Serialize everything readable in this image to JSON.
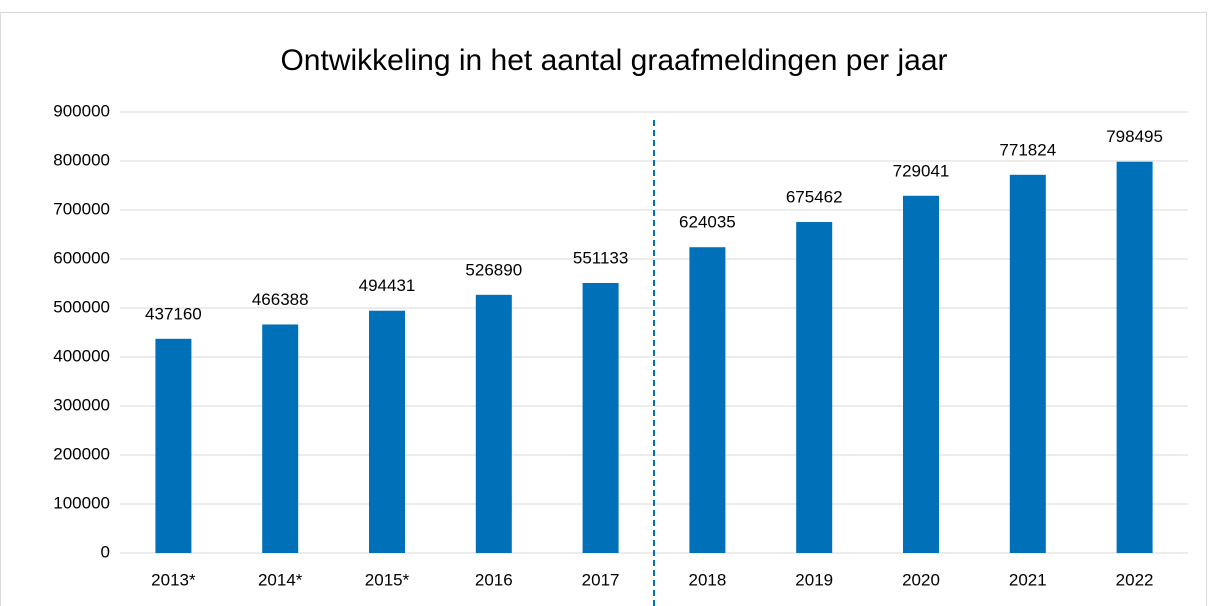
{
  "chart_data": {
    "type": "bar",
    "title": "Ontwikkeling in het aantal graafmeldingen per jaar",
    "categories": [
      "2013*",
      "2014*",
      "2015*",
      "2016",
      "2017",
      "2018",
      "2019",
      "2020",
      "2021",
      "2022"
    ],
    "values": [
      437160,
      466388,
      494431,
      526890,
      551133,
      624035,
      675462,
      729041,
      771824,
      798495
    ],
    "color": "#0070b8",
    "ylim": [
      0,
      900000
    ],
    "yticks": [
      0,
      100000,
      200000,
      300000,
      400000,
      500000,
      600000,
      700000,
      800000,
      900000
    ],
    "grid": true
  }
}
